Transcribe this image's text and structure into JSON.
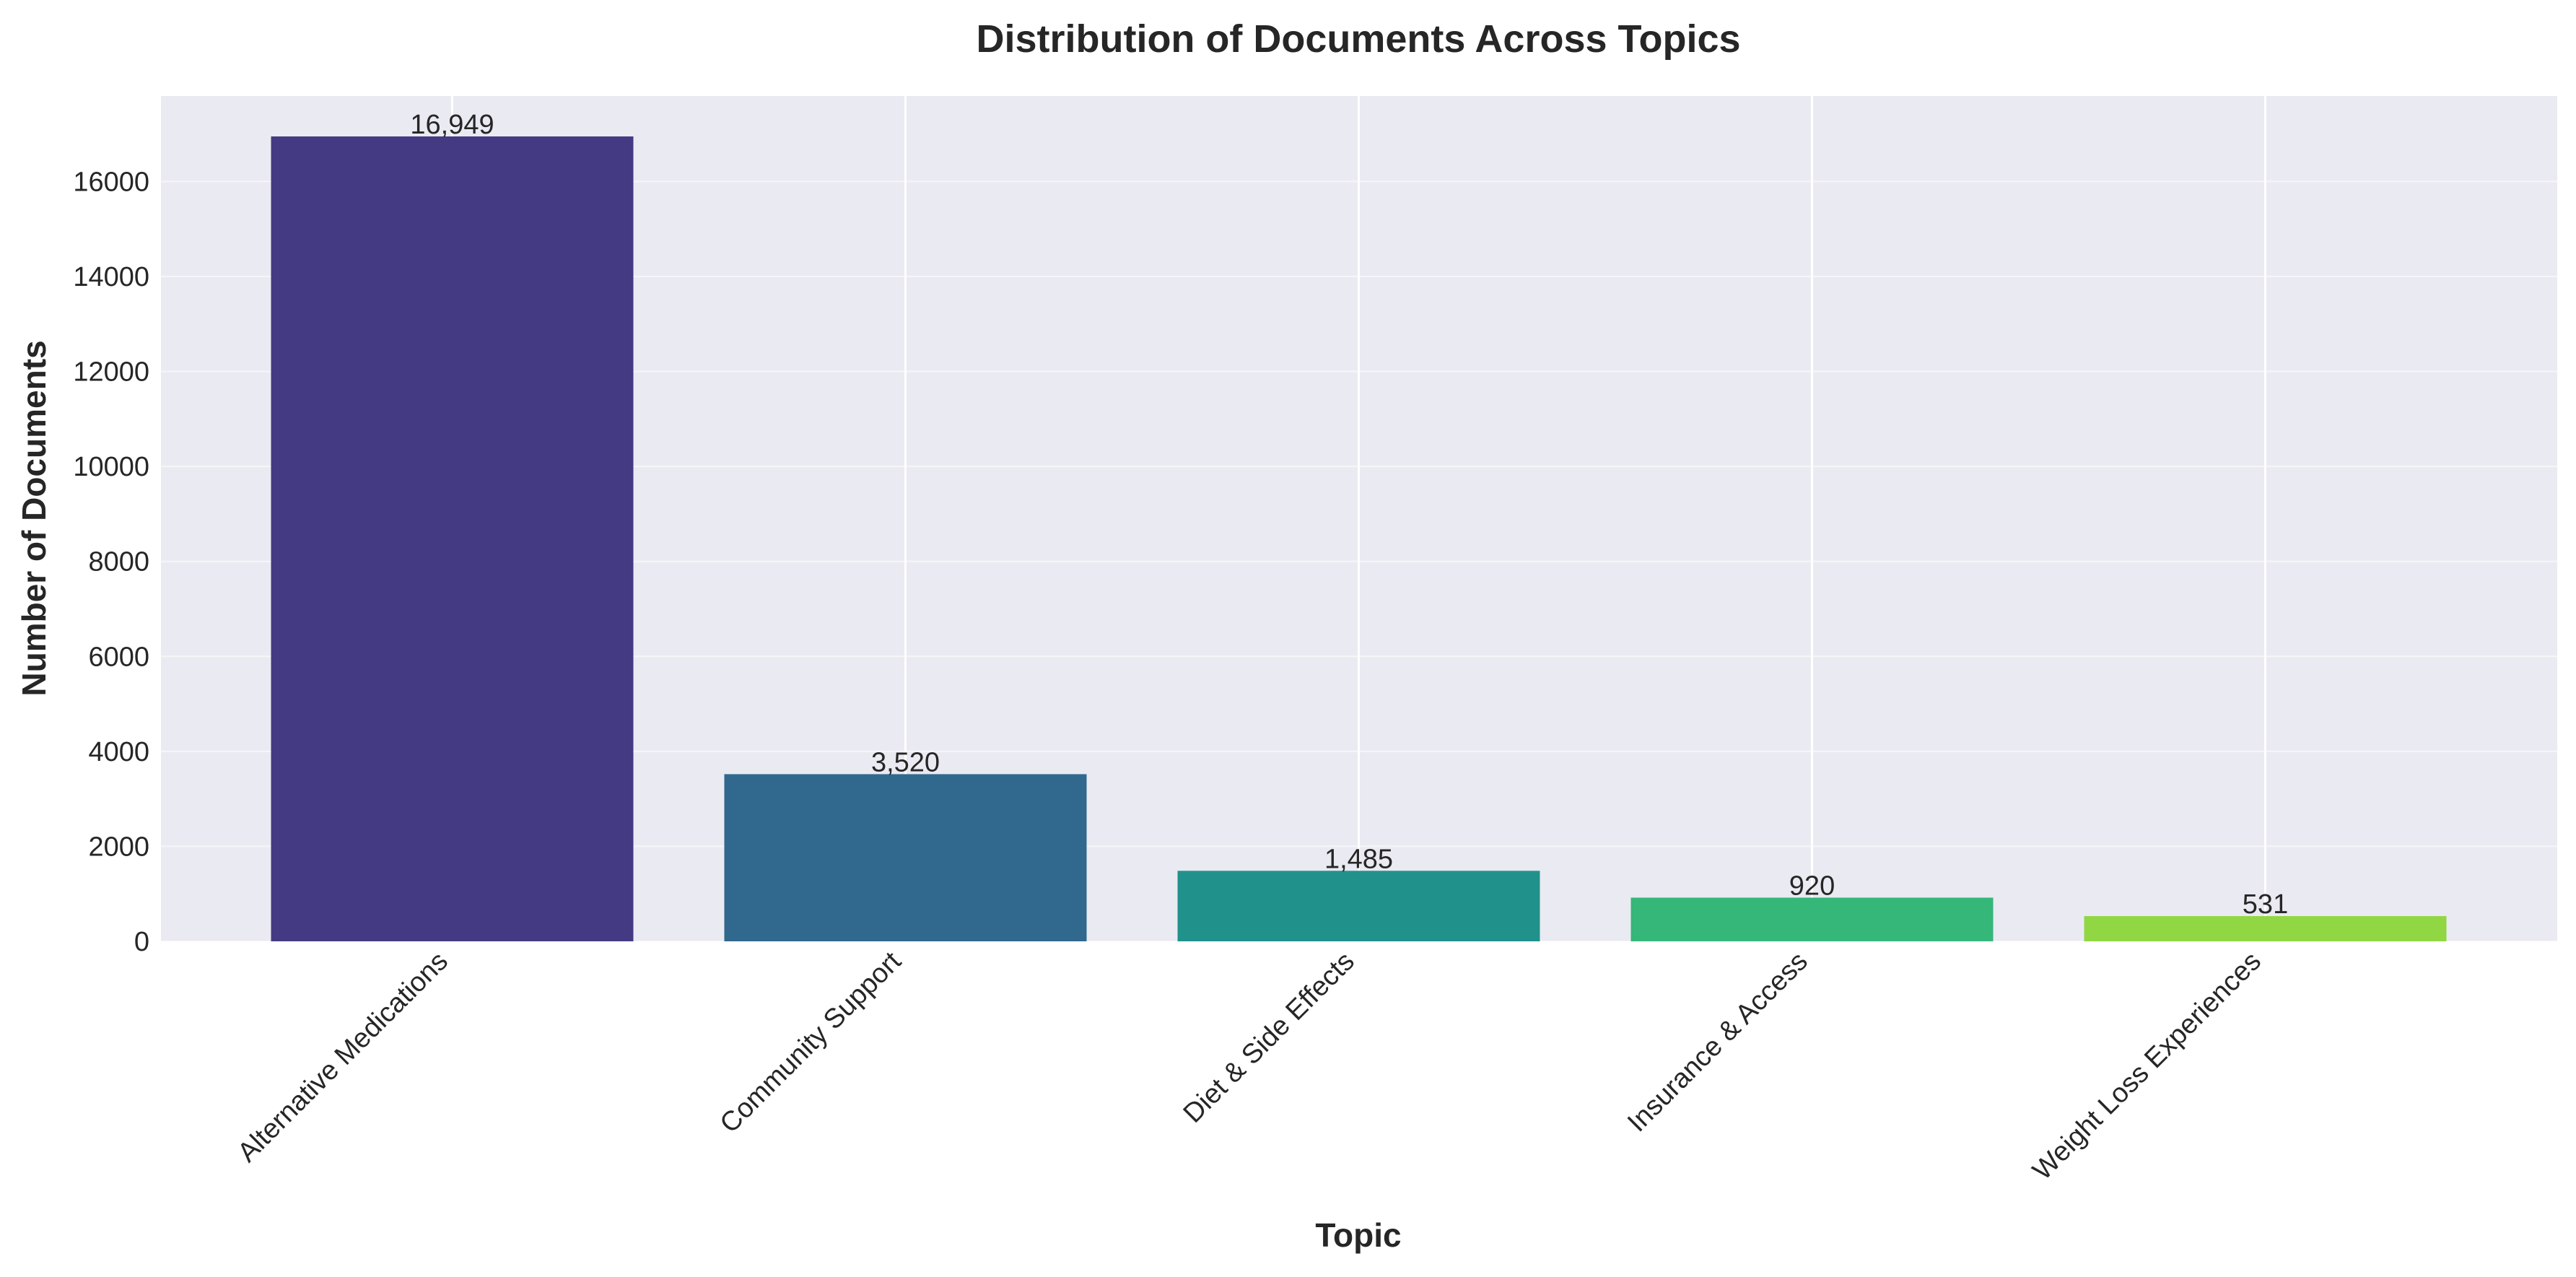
{
  "chart_data": {
    "type": "bar",
    "title": "Distribution of Documents Across Topics",
    "xlabel": "Topic",
    "ylabel": "Number of Documents",
    "categories": [
      "Alternative Medications",
      "Community Support",
      "Diet & Side Effects",
      "Insurance & Access",
      "Weight Loss Experiences"
    ],
    "values": [
      16949,
      3520,
      1485,
      920,
      531
    ],
    "value_labels": [
      "16,949",
      "3,520",
      "1,485",
      "920",
      "531"
    ],
    "ylim": [
      0,
      17800
    ],
    "yticks": [
      0,
      2000,
      4000,
      6000,
      8000,
      10000,
      12000,
      14000,
      16000
    ],
    "colors": [
      "#443a83",
      "#31688e",
      "#21918c",
      "#35b779",
      "#90d743"
    ],
    "background": "#eaeaf2",
    "grid": true,
    "legend": "none"
  }
}
